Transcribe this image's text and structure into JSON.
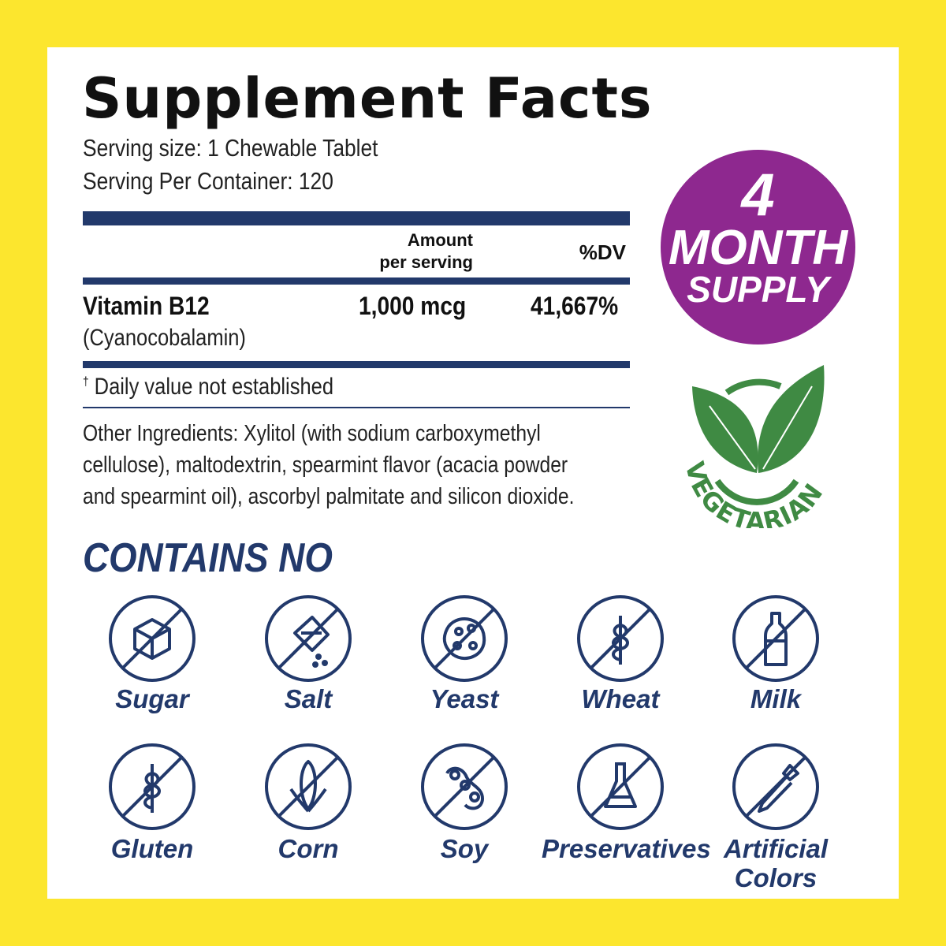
{
  "title": "Supplement Facts",
  "serving_size": "Serving size: 1 Chewable Tablet",
  "servings_per_container": "Serving Per Container: 120",
  "table": {
    "header_amount_line1": "Amount",
    "header_amount_line2": "per serving",
    "header_dv": "%DV",
    "rows": [
      {
        "name": "Vitamin B12",
        "subname": "(Cyanocobalamin)",
        "amount": "1,000 mcg",
        "dv": "41,667%"
      }
    ],
    "footnote_mark": "†",
    "footnote": "Daily value not established"
  },
  "other_ingredients": [
    "Other Ingredients: Xylitol (with sodium carboxymethyl",
    "cellulose), maltodextrin, spearmint flavor (acacia powder",
    "and spearmint oil), ascorbyl palmitate and silicon dioxide."
  ],
  "badge": {
    "number": "4",
    "line1": "MONTH",
    "line2": "SUPPLY",
    "color": "#8e288f"
  },
  "vegetarian": {
    "text": "VEGETARIAN",
    "color": "#3f8a43",
    "icon": "leaves-icon"
  },
  "contains_no": {
    "heading": "CONTAINS NO",
    "items": [
      {
        "label": "Sugar",
        "icon": "sugar-cube-icon"
      },
      {
        "label": "Salt",
        "icon": "salt-shaker-icon"
      },
      {
        "label": "Yeast",
        "icon": "yeast-icon"
      },
      {
        "label": "Wheat",
        "icon": "wheat-icon"
      },
      {
        "label": "Milk",
        "icon": "milk-bottle-icon"
      },
      {
        "label": "Gluten",
        "icon": "gluten-icon"
      },
      {
        "label": "Corn",
        "icon": "corn-icon"
      },
      {
        "label": "Soy",
        "icon": "soy-icon"
      },
      {
        "label": "Preservatives",
        "icon": "flask-icon"
      },
      {
        "label": "Artificial Colors",
        "label_line1": "Artificial",
        "label_line2": "Colors",
        "icon": "dropper-icon"
      }
    ]
  },
  "colors": {
    "background": "#fce62e",
    "navy": "#22396b",
    "purple": "#8e288f",
    "green": "#3f8a43"
  }
}
